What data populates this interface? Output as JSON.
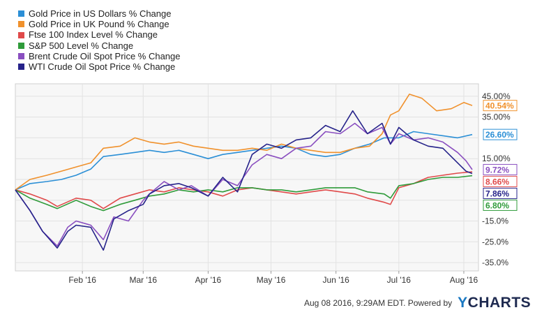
{
  "chart_data": {
    "type": "line",
    "title": "",
    "xlabel": "",
    "ylabel": "",
    "x_labels": [
      "Feb '16",
      "Mar '16",
      "Apr '16",
      "May '16",
      "Jun '16",
      "Jul '16",
      "Aug '16"
    ],
    "y_ticks": [
      "45.00%",
      "35.00%",
      "15.00%",
      "-15.0%",
      "-25.0%",
      "-35.0%"
    ],
    "y_tick_values": [
      45,
      35,
      15,
      -15,
      -25,
      -35
    ],
    "ylim": [
      -39,
      51
    ],
    "x_range": [
      "2015-12-31",
      "2016-08-08"
    ],
    "grid": true,
    "legend_position": "top-left",
    "series": [
      {
        "name": "Gold Price in US Dollars % Change",
        "color": "#2b8fd6",
        "end_label": "26.60%",
        "points": [
          [
            "2015-12-31",
            0
          ],
          [
            "2016-01-07",
            3
          ],
          [
            "2016-01-15",
            4
          ],
          [
            "2016-01-22",
            5
          ],
          [
            "2016-01-29",
            7
          ],
          [
            "2016-02-05",
            10
          ],
          [
            "2016-02-11",
            16
          ],
          [
            "2016-02-19",
            17
          ],
          [
            "2016-02-26",
            18
          ],
          [
            "2016-03-04",
            19
          ],
          [
            "2016-03-11",
            18
          ],
          [
            "2016-03-18",
            19
          ],
          [
            "2016-03-25",
            17
          ],
          [
            "2016-04-01",
            15
          ],
          [
            "2016-04-08",
            17
          ],
          [
            "2016-04-15",
            18
          ],
          [
            "2016-04-22",
            19
          ],
          [
            "2016-04-29",
            20
          ],
          [
            "2016-05-06",
            21
          ],
          [
            "2016-05-13",
            20
          ],
          [
            "2016-05-20",
            17
          ],
          [
            "2016-05-27",
            16
          ],
          [
            "2016-06-03",
            17
          ],
          [
            "2016-06-10",
            20
          ],
          [
            "2016-06-17",
            22
          ],
          [
            "2016-06-24",
            25
          ],
          [
            "2016-07-01",
            25
          ],
          [
            "2016-07-08",
            28
          ],
          [
            "2016-07-15",
            27
          ],
          [
            "2016-07-22",
            26
          ],
          [
            "2016-07-29",
            25
          ],
          [
            "2016-08-05",
            26.6
          ]
        ]
      },
      {
        "name": "Gold Price in UK Pound % Change",
        "color": "#f0912c",
        "end_label": "40.54%",
        "points": [
          [
            "2015-12-31",
            0
          ],
          [
            "2016-01-07",
            5
          ],
          [
            "2016-01-15",
            7
          ],
          [
            "2016-01-22",
            9
          ],
          [
            "2016-01-29",
            11
          ],
          [
            "2016-02-05",
            13
          ],
          [
            "2016-02-11",
            20
          ],
          [
            "2016-02-19",
            21
          ],
          [
            "2016-02-26",
            25
          ],
          [
            "2016-03-04",
            23
          ],
          [
            "2016-03-11",
            22
          ],
          [
            "2016-03-18",
            23
          ],
          [
            "2016-03-25",
            21
          ],
          [
            "2016-04-01",
            20
          ],
          [
            "2016-04-08",
            19
          ],
          [
            "2016-04-15",
            19
          ],
          [
            "2016-04-22",
            20
          ],
          [
            "2016-04-29",
            19
          ],
          [
            "2016-05-06",
            22
          ],
          [
            "2016-05-13",
            20
          ],
          [
            "2016-05-20",
            19
          ],
          [
            "2016-05-27",
            18
          ],
          [
            "2016-06-03",
            18
          ],
          [
            "2016-06-10",
            20
          ],
          [
            "2016-06-17",
            21
          ],
          [
            "2016-06-23",
            27
          ],
          [
            "2016-06-27",
            36
          ],
          [
            "2016-07-01",
            38
          ],
          [
            "2016-07-06",
            46
          ],
          [
            "2016-07-12",
            44
          ],
          [
            "2016-07-19",
            38
          ],
          [
            "2016-07-26",
            39
          ],
          [
            "2016-08-01",
            42
          ],
          [
            "2016-08-05",
            40.54
          ]
        ]
      },
      {
        "name": "Ftse 100 Index Level % Change",
        "color": "#e04a4a",
        "end_label": "8.66%",
        "points": [
          [
            "2015-12-31",
            0
          ],
          [
            "2016-01-07",
            -2
          ],
          [
            "2016-01-15",
            -5
          ],
          [
            "2016-01-20",
            -8
          ],
          [
            "2016-01-29",
            -4
          ],
          [
            "2016-02-05",
            -5
          ],
          [
            "2016-02-11",
            -9
          ],
          [
            "2016-02-19",
            -4
          ],
          [
            "2016-02-26",
            -2
          ],
          [
            "2016-03-04",
            0
          ],
          [
            "2016-03-11",
            -1
          ],
          [
            "2016-03-18",
            1
          ],
          [
            "2016-03-25",
            0
          ],
          [
            "2016-04-01",
            -1
          ],
          [
            "2016-04-08",
            -3
          ],
          [
            "2016-04-15",
            0
          ],
          [
            "2016-04-22",
            1
          ],
          [
            "2016-04-29",
            0
          ],
          [
            "2016-05-06",
            -1
          ],
          [
            "2016-05-13",
            -2
          ],
          [
            "2016-05-20",
            -1
          ],
          [
            "2016-05-27",
            0
          ],
          [
            "2016-06-03",
            -1
          ],
          [
            "2016-06-10",
            -2
          ],
          [
            "2016-06-16",
            -4
          ],
          [
            "2016-06-24",
            -6
          ],
          [
            "2016-06-27",
            -7
          ],
          [
            "2016-07-01",
            1
          ],
          [
            "2016-07-08",
            3
          ],
          [
            "2016-07-15",
            6
          ],
          [
            "2016-07-22",
            7
          ],
          [
            "2016-07-29",
            8
          ],
          [
            "2016-08-05",
            8.66
          ]
        ]
      },
      {
        "name": "S&P 500 Level % Change",
        "color": "#2f9b3a",
        "end_label": "6.80%",
        "points": [
          [
            "2015-12-31",
            0
          ],
          [
            "2016-01-07",
            -4
          ],
          [
            "2016-01-15",
            -7
          ],
          [
            "2016-01-20",
            -9
          ],
          [
            "2016-01-29",
            -5
          ],
          [
            "2016-02-05",
            -8
          ],
          [
            "2016-02-11",
            -10
          ],
          [
            "2016-02-19",
            -7
          ],
          [
            "2016-02-26",
            -5
          ],
          [
            "2016-03-04",
            -3
          ],
          [
            "2016-03-11",
            -2
          ],
          [
            "2016-03-18",
            0
          ],
          [
            "2016-03-25",
            -1
          ],
          [
            "2016-04-01",
            0
          ],
          [
            "2016-04-08",
            -1
          ],
          [
            "2016-04-15",
            1
          ],
          [
            "2016-04-22",
            1
          ],
          [
            "2016-04-29",
            0
          ],
          [
            "2016-05-06",
            0
          ],
          [
            "2016-05-13",
            -1
          ],
          [
            "2016-05-20",
            0
          ],
          [
            "2016-05-27",
            1
          ],
          [
            "2016-06-03",
            1
          ],
          [
            "2016-06-10",
            1
          ],
          [
            "2016-06-16",
            -1
          ],
          [
            "2016-06-24",
            -2
          ],
          [
            "2016-06-27",
            -4
          ],
          [
            "2016-07-01",
            2
          ],
          [
            "2016-07-08",
            3
          ],
          [
            "2016-07-15",
            5
          ],
          [
            "2016-07-22",
            6
          ],
          [
            "2016-07-29",
            6
          ],
          [
            "2016-08-05",
            6.8
          ]
        ]
      },
      {
        "name": "Brent Crude Oil Spot Price % Change",
        "color": "#8a4fc0",
        "end_label": "9.72%",
        "points": [
          [
            "2015-12-31",
            0
          ],
          [
            "2016-01-07",
            -10
          ],
          [
            "2016-01-13",
            -20
          ],
          [
            "2016-01-20",
            -27
          ],
          [
            "2016-01-25",
            -18
          ],
          [
            "2016-01-29",
            -15
          ],
          [
            "2016-02-05",
            -17
          ],
          [
            "2016-02-11",
            -24
          ],
          [
            "2016-02-16",
            -13
          ],
          [
            "2016-02-23",
            -15
          ],
          [
            "2016-03-01",
            -5
          ],
          [
            "2016-03-04",
            -2
          ],
          [
            "2016-03-11",
            4
          ],
          [
            "2016-03-18",
            0
          ],
          [
            "2016-03-24",
            2
          ],
          [
            "2016-04-01",
            -3
          ],
          [
            "2016-04-08",
            5
          ],
          [
            "2016-04-15",
            2
          ],
          [
            "2016-04-22",
            12
          ],
          [
            "2016-04-29",
            17
          ],
          [
            "2016-05-06",
            15
          ],
          [
            "2016-05-13",
            20
          ],
          [
            "2016-05-20",
            21
          ],
          [
            "2016-05-27",
            28
          ],
          [
            "2016-06-03",
            27
          ],
          [
            "2016-06-10",
            32
          ],
          [
            "2016-06-16",
            27
          ],
          [
            "2016-06-23",
            30
          ],
          [
            "2016-06-27",
            22
          ],
          [
            "2016-07-01",
            27
          ],
          [
            "2016-07-08",
            24
          ],
          [
            "2016-07-15",
            25
          ],
          [
            "2016-07-22",
            23
          ],
          [
            "2016-07-29",
            18
          ],
          [
            "2016-08-02",
            14
          ],
          [
            "2016-08-05",
            9.72
          ]
        ]
      },
      {
        "name": "WTI Crude Oil Spot Price % Change",
        "color": "#26238a",
        "end_label": "7.86%",
        "points": [
          [
            "2015-12-31",
            0
          ],
          [
            "2016-01-07",
            -10
          ],
          [
            "2016-01-13",
            -20
          ],
          [
            "2016-01-20",
            -28
          ],
          [
            "2016-01-25",
            -20
          ],
          [
            "2016-01-29",
            -17
          ],
          [
            "2016-02-05",
            -18
          ],
          [
            "2016-02-11",
            -29
          ],
          [
            "2016-02-16",
            -14
          ],
          [
            "2016-02-23",
            -10
          ],
          [
            "2016-03-01",
            -7
          ],
          [
            "2016-03-04",
            -2
          ],
          [
            "2016-03-11",
            2
          ],
          [
            "2016-03-18",
            3
          ],
          [
            "2016-03-24",
            1
          ],
          [
            "2016-04-01",
            -3
          ],
          [
            "2016-04-08",
            6
          ],
          [
            "2016-04-15",
            -1
          ],
          [
            "2016-04-22",
            17
          ],
          [
            "2016-04-29",
            22
          ],
          [
            "2016-05-06",
            20
          ],
          [
            "2016-05-13",
            24
          ],
          [
            "2016-05-20",
            25
          ],
          [
            "2016-05-27",
            31
          ],
          [
            "2016-06-03",
            28
          ],
          [
            "2016-06-09",
            38
          ],
          [
            "2016-06-16",
            27
          ],
          [
            "2016-06-23",
            32
          ],
          [
            "2016-06-27",
            22
          ],
          [
            "2016-07-01",
            30
          ],
          [
            "2016-07-08",
            24
          ],
          [
            "2016-07-15",
            21
          ],
          [
            "2016-07-22",
            20
          ],
          [
            "2016-07-29",
            13
          ],
          [
            "2016-08-02",
            9
          ],
          [
            "2016-08-05",
            7.86
          ]
        ]
      }
    ]
  },
  "footer": {
    "timestamp": "Aug 08 2016, 9:29AM EDT.  Powered by",
    "logo_prefix": "Y",
    "logo_rest": "CHARTS"
  }
}
